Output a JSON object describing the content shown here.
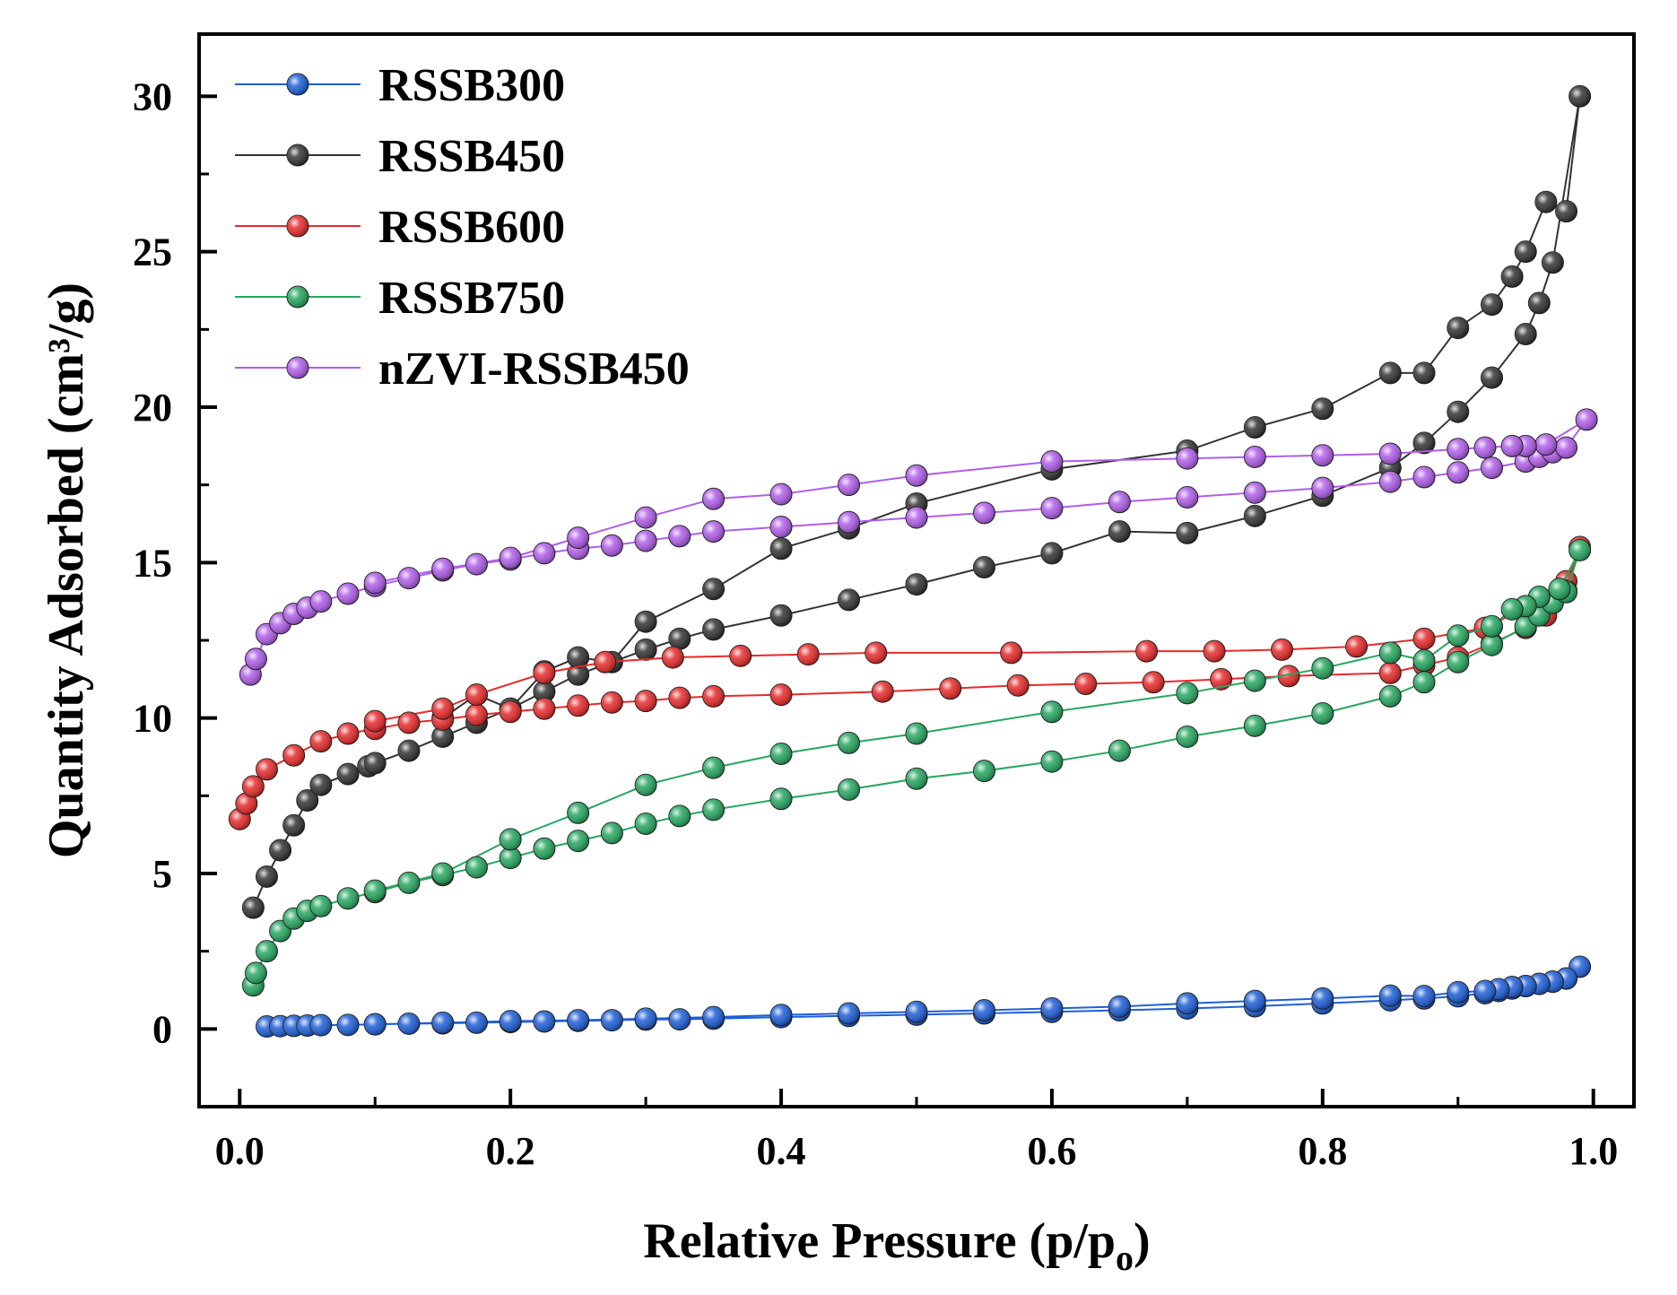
{
  "chart_data": {
    "type": "line",
    "xlabel": "Relative Pressure (p/p",
    "xlabel_subscript": "o",
    "xlabel_close": ")",
    "ylabel": "Quantity Adsorbed (cm³/g)",
    "xlim": [
      -0.03,
      1.03
    ],
    "ylim": [
      -2.5,
      32
    ],
    "xticks": [
      0.0,
      0.2,
      0.4,
      0.6,
      0.8,
      1.0
    ],
    "xtick_labels": [
      "0.0",
      "0.2",
      "0.4",
      "0.6",
      "0.8",
      "1.0"
    ],
    "yticks": [
      0,
      5,
      10,
      15,
      20,
      25,
      30
    ],
    "ytick_labels": [
      "0",
      "5",
      "10",
      "15",
      "20",
      "25",
      "30"
    ],
    "legend_position": "top-left",
    "series": [
      {
        "name": "RSSB300",
        "color": "#1f5fd6",
        "x": [
          0.02,
          0.03,
          0.04,
          0.05,
          0.06,
          0.08,
          0.1,
          0.125,
          0.15,
          0.175,
          0.2,
          0.225,
          0.25,
          0.275,
          0.3,
          0.325,
          0.35,
          0.4,
          0.45,
          0.5,
          0.55,
          0.6,
          0.65,
          0.7,
          0.75,
          0.8,
          0.85,
          0.875,
          0.9,
          0.92,
          0.93,
          0.94,
          0.95,
          0.96,
          0.97,
          0.98,
          0.99,
          0.98,
          0.97,
          0.96,
          0.95,
          0.94,
          0.93,
          0.92,
          0.9,
          0.875,
          0.85,
          0.8,
          0.75,
          0.7,
          0.65,
          0.6,
          0.55,
          0.5,
          0.45,
          0.4,
          0.35,
          0.3,
          0.25,
          0.2,
          0.15,
          0.1
        ],
        "y": [
          0.08,
          0.09,
          0.1,
          0.11,
          0.12,
          0.13,
          0.15,
          0.17,
          0.18,
          0.2,
          0.22,
          0.24,
          0.26,
          0.28,
          0.3,
          0.31,
          0.33,
          0.38,
          0.42,
          0.46,
          0.5,
          0.55,
          0.6,
          0.66,
          0.73,
          0.82,
          0.92,
          0.98,
          1.05,
          1.15,
          1.22,
          1.3,
          1.38,
          1.45,
          1.52,
          1.62,
          2.0,
          1.62,
          1.52,
          1.45,
          1.38,
          1.35,
          1.28,
          1.22,
          1.18,
          1.06,
          1.07,
          0.98,
          0.9,
          0.82,
          0.72,
          0.66,
          0.6,
          0.55,
          0.5,
          0.45,
          0.38,
          0.33,
          0.28,
          0.25,
          0.2,
          0.15
        ]
      },
      {
        "name": "RSSB450",
        "color": "#333333",
        "x": [
          0.01,
          0.02,
          0.03,
          0.04,
          0.05,
          0.06,
          0.08,
          0.095,
          0.1,
          0.125,
          0.15,
          0.175,
          0.2,
          0.225,
          0.25,
          0.3,
          0.325,
          0.35,
          0.4,
          0.45,
          0.5,
          0.55,
          0.6,
          0.65,
          0.7,
          0.75,
          0.8,
          0.85,
          0.875,
          0.9,
          0.925,
          0.95,
          0.96,
          0.97,
          0.99,
          0.98,
          0.965,
          0.95,
          0.94,
          0.925,
          0.9,
          0.875,
          0.85,
          0.8,
          0.75,
          0.7,
          0.6,
          0.5,
          0.45,
          0.4,
          0.35,
          0.3,
          0.275,
          0.25,
          0.225,
          0.2,
          0.175,
          0.15
        ],
        "y": [
          3.9,
          4.9,
          5.75,
          6.55,
          7.35,
          7.85,
          8.2,
          8.45,
          8.55,
          8.95,
          9.4,
          9.85,
          10.3,
          10.85,
          11.4,
          12.2,
          12.55,
          12.85,
          13.3,
          13.8,
          14.3,
          14.85,
          15.3,
          16.0,
          15.95,
          16.5,
          17.15,
          18.05,
          18.85,
          19.85,
          20.95,
          22.35,
          23.35,
          24.65,
          30.0,
          26.3,
          26.6,
          25.0,
          24.2,
          23.3,
          22.55,
          21.1,
          21.1,
          19.95,
          19.35,
          18.6,
          18.0,
          16.9,
          16.1,
          15.45,
          14.15,
          13.1,
          11.8,
          11.95,
          11.5,
          10.3,
          10.75,
          10.0
        ]
      },
      {
        "name": "RSSB600",
        "color": "#e52b2b",
        "x": [
          0.0,
          0.005,
          0.01,
          0.02,
          0.04,
          0.06,
          0.08,
          0.1,
          0.125,
          0.15,
          0.175,
          0.2,
          0.225,
          0.25,
          0.275,
          0.3,
          0.325,
          0.35,
          0.4,
          0.475,
          0.525,
          0.575,
          0.625,
          0.675,
          0.725,
          0.775,
          0.85,
          0.875,
          0.9,
          0.925,
          0.95,
          0.965,
          0.98,
          0.99,
          0.98,
          0.95,
          0.92,
          0.875,
          0.825,
          0.77,
          0.72,
          0.67,
          0.57,
          0.47,
          0.42,
          0.37,
          0.32,
          0.27,
          0.225,
          0.175,
          0.15,
          0.1
        ],
        "y": [
          6.75,
          7.25,
          7.8,
          8.35,
          8.8,
          9.25,
          9.5,
          9.65,
          9.85,
          9.95,
          10.1,
          10.2,
          10.3,
          10.4,
          10.5,
          10.55,
          10.65,
          10.7,
          10.75,
          10.85,
          10.95,
          11.05,
          11.1,
          11.15,
          11.25,
          11.35,
          11.45,
          11.7,
          11.95,
          12.4,
          12.9,
          13.3,
          14.4,
          15.5,
          14.1,
          13.55,
          12.9,
          12.55,
          12.3,
          12.2,
          12.15,
          12.15,
          12.1,
          12.1,
          12.05,
          12.0,
          11.95,
          11.8,
          11.45,
          10.75,
          10.3,
          9.9
        ]
      },
      {
        "name": "RSSB750",
        "color": "#27a660",
        "x": [
          0.01,
          0.012,
          0.02,
          0.03,
          0.04,
          0.05,
          0.06,
          0.08,
          0.1,
          0.125,
          0.15,
          0.175,
          0.2,
          0.225,
          0.25,
          0.275,
          0.3,
          0.325,
          0.35,
          0.4,
          0.45,
          0.5,
          0.55,
          0.6,
          0.65,
          0.7,
          0.75,
          0.8,
          0.85,
          0.875,
          0.9,
          0.925,
          0.95,
          0.96,
          0.97,
          0.98,
          0.99,
          0.975,
          0.96,
          0.95,
          0.94,
          0.925,
          0.9,
          0.875,
          0.85,
          0.8,
          0.75,
          0.7,
          0.6,
          0.5,
          0.45,
          0.4,
          0.35,
          0.3,
          0.25,
          0.2,
          0.15,
          0.1
        ],
        "y": [
          1.4,
          1.8,
          2.5,
          3.15,
          3.55,
          3.8,
          3.95,
          4.2,
          4.4,
          4.7,
          4.95,
          5.2,
          5.5,
          5.8,
          6.05,
          6.3,
          6.6,
          6.85,
          7.05,
          7.4,
          7.7,
          8.05,
          8.3,
          8.6,
          8.95,
          9.4,
          9.75,
          10.15,
          10.7,
          11.15,
          11.8,
          12.35,
          12.95,
          13.3,
          13.7,
          14.05,
          15.4,
          14.15,
          13.9,
          13.6,
          13.5,
          12.95,
          12.65,
          11.85,
          12.1,
          11.6,
          11.2,
          10.8,
          10.2,
          9.5,
          9.2,
          8.85,
          8.4,
          7.85,
          6.95,
          6.1,
          5.0,
          4.45
        ]
      },
      {
        "name": "nZVI-RSSB450",
        "color": "#b05ee8",
        "x": [
          0.008,
          0.012,
          0.02,
          0.03,
          0.04,
          0.05,
          0.06,
          0.08,
          0.1,
          0.125,
          0.15,
          0.175,
          0.2,
          0.225,
          0.25,
          0.275,
          0.3,
          0.325,
          0.35,
          0.4,
          0.45,
          0.5,
          0.55,
          0.6,
          0.65,
          0.7,
          0.75,
          0.8,
          0.85,
          0.875,
          0.9,
          0.925,
          0.95,
          0.96,
          0.97,
          0.98,
          0.995,
          0.965,
          0.95,
          0.94,
          0.92,
          0.9,
          0.85,
          0.8,
          0.75,
          0.7,
          0.6,
          0.5,
          0.45,
          0.4,
          0.35,
          0.3,
          0.25,
          0.2,
          0.15,
          0.1
        ],
        "y": [
          11.4,
          11.9,
          12.7,
          13.05,
          13.35,
          13.55,
          13.75,
          14.0,
          14.25,
          14.5,
          14.75,
          14.95,
          15.1,
          15.3,
          15.45,
          15.55,
          15.7,
          15.85,
          16.0,
          16.15,
          16.3,
          16.45,
          16.6,
          16.75,
          16.95,
          17.1,
          17.25,
          17.4,
          17.6,
          17.75,
          17.9,
          18.05,
          18.25,
          18.4,
          18.55,
          18.7,
          19.6,
          18.8,
          18.75,
          18.75,
          18.7,
          18.65,
          18.5,
          18.45,
          18.4,
          18.35,
          18.25,
          17.8,
          17.5,
          17.2,
          17.05,
          16.45,
          15.8,
          15.15,
          14.8,
          14.35
        ]
      }
    ]
  }
}
